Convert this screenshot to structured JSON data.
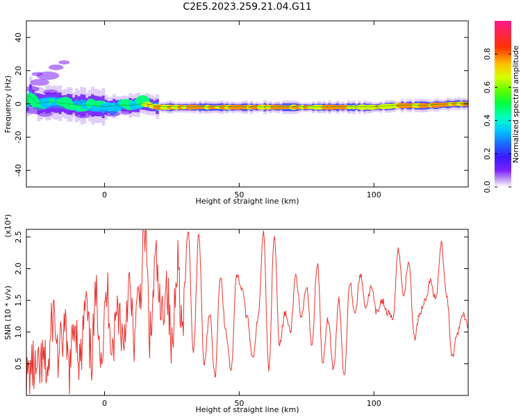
{
  "title": "C2E5.2023.259.21.04.G11",
  "chart_data": [
    {
      "type": "heatmap",
      "xlabel": "Height of straight line (km)",
      "ylabel": "Frequency (Hz)",
      "xlim": [
        -29,
        135
      ],
      "ylim": [
        -50,
        50
      ],
      "xticks": [
        0,
        50,
        100
      ],
      "yticks": [
        -40,
        -20,
        0,
        20,
        40
      ],
      "colorbar": {
        "label": "Normalized spectral amplitude",
        "range": [
          0.0,
          1.0
        ],
        "ticks": [
          "0.0",
          "0.2",
          "0.4",
          "0.6",
          "0.8"
        ],
        "tick_values": [
          0.0,
          0.2,
          0.4,
          0.6,
          0.8
        ]
      },
      "ridge": {
        "description_values": "peak frequency vs height",
        "x": [
          -28,
          -25,
          -20,
          -15,
          -10,
          -5,
          0,
          5,
          10,
          15,
          20,
          30,
          40,
          50,
          60,
          70,
          80,
          90,
          100,
          110,
          120,
          130,
          134
        ],
        "y": [
          5,
          0,
          1,
          0,
          -1,
          -1,
          -2,
          -1,
          -1,
          0,
          -2,
          -2,
          -2,
          -2,
          -2,
          -2,
          -2,
          -2,
          -2,
          -1,
          -1,
          0,
          0
        ]
      }
    },
    {
      "type": "line",
      "xlabel": "Height of straight line (km)",
      "ylabel": "SNR (10 * v/v)",
      "multiplier": "(x10⁴)",
      "xlim": [
        -29,
        135
      ],
      "ylim": [
        0,
        2.62
      ],
      "xticks": [
        0,
        50,
        100
      ],
      "yticks": [
        0.5,
        1.0,
        1.5,
        2.0,
        2.5
      ],
      "line_color": "#e8312b",
      "series": [
        {
          "x": [
            -29,
            -27,
            -25,
            -23,
            -21,
            -19,
            -17,
            -15,
            -13,
            -11,
            -9,
            -7,
            -5,
            -3,
            -1,
            1,
            3,
            5,
            7,
            9,
            11,
            13,
            15,
            17,
            19,
            21,
            23,
            25,
            27,
            29,
            31,
            33,
            35,
            37,
            39,
            41,
            43,
            45,
            47,
            49,
            51,
            53,
            55,
            57,
            59,
            61,
            63,
            65,
            67,
            69,
            71,
            73,
            75,
            77,
            79,
            81,
            83,
            85,
            87,
            89,
            91,
            93,
            95,
            97,
            99,
            101,
            103,
            105,
            107,
            109,
            111,
            113,
            115,
            117,
            119,
            121,
            123,
            125,
            127,
            129,
            131,
            133,
            135
          ],
          "y": [
            0.2,
            0.45,
            0.3,
            0.5,
            0.4,
            1.3,
            0.6,
            1.0,
            0.4,
            1.2,
            0.5,
            1.4,
            0.6,
            1.5,
            0.7,
            1.6,
            0.8,
            1.4,
            0.9,
            1.7,
            0.9,
            1.6,
            2.55,
            0.9,
            2.1,
            1.2,
            1.8,
            0.7,
            2.2,
            1.0,
            2.6,
            0.7,
            2.55,
            0.5,
            1.3,
            0.3,
            1.9,
            1.0,
            0.4,
            1.9,
            1.7,
            1.2,
            0.6,
            1.2,
            2.6,
            0.4,
            2.55,
            0.8,
            1.3,
            1.0,
            1.9,
            1.2,
            1.7,
            0.8,
            2.1,
            0.5,
            1.2,
            0.4,
            1.5,
            0.3,
            1.8,
            1.3,
            1.9,
            1.4,
            1.7,
            1.3,
            1.5,
            1.3,
            1.2,
            2.3,
            1.6,
            2.1,
            0.9,
            1.3,
            1.5,
            1.8,
            1.5,
            2.4,
            1.6,
            0.6,
            1.0,
            1.3,
            1.1
          ]
        }
      ]
    }
  ]
}
